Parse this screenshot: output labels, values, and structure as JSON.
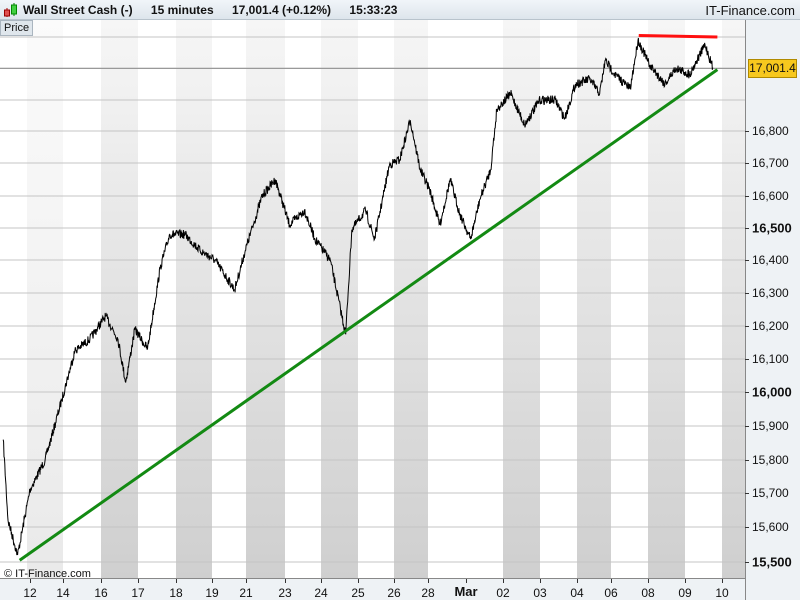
{
  "header": {
    "instrument": "Wall Street Cash (-)",
    "timeframe": "15 minutes",
    "last_change": "17,001.4 (+0.12%)",
    "time": "15:33:23",
    "brand": "IT-Finance.com"
  },
  "panel_tab": "Price",
  "copyright": "© IT-Finance.com",
  "colors": {
    "price_line": "#000000",
    "trend_support": "#138a13",
    "trend_resistance": "#ff1010",
    "last_price_bg": "#f7c81e"
  },
  "chart_data": {
    "type": "line",
    "y_axis": {
      "ticks": [
        {
          "value": 16800,
          "label": "16,800",
          "bold": false
        },
        {
          "value": 16700,
          "label": "16,700",
          "bold": false
        },
        {
          "value": 16600,
          "label": "16,600",
          "bold": false
        },
        {
          "value": 16500,
          "label": "16,500",
          "bold": true
        },
        {
          "value": 16400,
          "label": "16,400",
          "bold": false
        },
        {
          "value": 16300,
          "label": "16,300",
          "bold": false
        },
        {
          "value": 16200,
          "label": "16,200",
          "bold": false
        },
        {
          "value": 16100,
          "label": "16,100",
          "bold": false
        },
        {
          "value": 16000,
          "label": "16,000",
          "bold": true
        },
        {
          "value": 15900,
          "label": "15,900",
          "bold": false
        },
        {
          "value": 15800,
          "label": "15,800",
          "bold": false
        },
        {
          "value": 15700,
          "label": "15,700",
          "bold": false
        },
        {
          "value": 15600,
          "label": "15,600",
          "bold": false
        },
        {
          "value": 15500,
          "label": "15,500",
          "bold": true
        }
      ],
      "gridlines": [
        17100,
        17000,
        16900,
        16800,
        16700,
        16600,
        16500,
        16400,
        16300,
        16200,
        16100,
        16000,
        15900,
        15800,
        15700,
        15600,
        15500
      ],
      "range": [
        15450,
        17150
      ]
    },
    "x_axis": {
      "ticks": [
        {
          "date": "02-12",
          "label": "12"
        },
        {
          "date": "02-14",
          "label": "14"
        },
        {
          "date": "02-16",
          "label": "16"
        },
        {
          "date": "02-17",
          "label": "17"
        },
        {
          "date": "02-18",
          "label": "18"
        },
        {
          "date": "02-19",
          "label": "19"
        },
        {
          "date": "02-21",
          "label": "21"
        },
        {
          "date": "02-23",
          "label": "23"
        },
        {
          "date": "02-24",
          "label": "24"
        },
        {
          "date": "02-25",
          "label": "25"
        },
        {
          "date": "02-26",
          "label": "26"
        },
        {
          "date": "02-28",
          "label": "28"
        },
        {
          "date": "03-01",
          "label": "Mar",
          "bold": true
        },
        {
          "date": "03-02",
          "label": "02"
        },
        {
          "date": "03-03",
          "label": "03"
        },
        {
          "date": "03-04",
          "label": "04"
        },
        {
          "date": "03-06",
          "label": "06"
        },
        {
          "date": "03-08",
          "label": "08"
        },
        {
          "date": "03-09",
          "label": "09"
        },
        {
          "date": "03-10",
          "label": "10"
        }
      ],
      "shaded_periods": [
        [
          "02-16",
          "02-17"
        ],
        [
          "02-18",
          "02-19"
        ],
        [
          "02-21",
          "02-23"
        ],
        [
          "02-24",
          "02-25"
        ],
        [
          "02-26",
          "02-28"
        ],
        [
          "03-02",
          "03-03"
        ],
        [
          "03-04",
          "03-06"
        ],
        [
          "03-08",
          "03-09"
        ],
        [
          "03-10",
          "03-11"
        ]
      ]
    },
    "last_price": {
      "value": 17001.4,
      "label": "17,001.4"
    },
    "series": [
      {
        "points": [
          [
            "02-10 09:00",
            15860
          ],
          [
            "02-10 16:00",
            15620
          ],
          [
            "02-11 06:00",
            15520
          ],
          [
            "02-12 00:00",
            15710
          ],
          [
            "02-12 22:00",
            15800
          ],
          [
            "02-13 22:00",
            15975
          ],
          [
            "02-14 15:00",
            16125
          ],
          [
            "02-15 10:00",
            16160
          ],
          [
            "02-16 03:00",
            16230
          ],
          [
            "02-16 11:00",
            16160
          ],
          [
            "02-16 16:00",
            16030
          ],
          [
            "02-16 22:00",
            16190
          ],
          [
            "02-17 06:00",
            16130
          ],
          [
            "02-17 14:00",
            16375
          ],
          [
            "02-17 20:00",
            16480
          ],
          [
            "02-18 06:00",
            16480
          ],
          [
            "02-18 16:00",
            16430
          ],
          [
            "02-19 04:00",
            16400
          ],
          [
            "02-20 08:00",
            16310
          ],
          [
            "02-20 23:00",
            16430
          ],
          [
            "02-21 20:00",
            16600
          ],
          [
            "02-22 12:00",
            16650
          ],
          [
            "02-23 03:00",
            16510
          ],
          [
            "02-23 13:00",
            16555
          ],
          [
            "02-23 20:00",
            16465
          ],
          [
            "02-24 06:00",
            16400
          ],
          [
            "02-24 16:00",
            16175
          ],
          [
            "02-24 20:00",
            16495
          ],
          [
            "02-25 05:00",
            16555
          ],
          [
            "02-25 11:00",
            16465
          ],
          [
            "02-25 21:00",
            16695
          ],
          [
            "02-26 08:00",
            16710
          ],
          [
            "02-26 23:00",
            16835
          ],
          [
            "02-27 13:00",
            16680
          ],
          [
            "02-28 02:00",
            16620
          ],
          [
            "02-28 15:00",
            16510
          ],
          [
            "02-29 04:00",
            16650
          ],
          [
            "02-29 16:00",
            16545
          ],
          [
            "03-01 03:00",
            16465
          ],
          [
            "03-01 09:00",
            16590
          ],
          [
            "03-01 16:00",
            16680
          ],
          [
            "03-01 20:00",
            16870
          ],
          [
            "03-02 05:00",
            16920
          ],
          [
            "03-02 14:00",
            16820
          ],
          [
            "03-03 00:00",
            16900
          ],
          [
            "03-03 10:00",
            16900
          ],
          [
            "03-03 16:00",
            16840
          ],
          [
            "03-03 23:00",
            16950
          ],
          [
            "03-04 18:00",
            16965
          ],
          [
            "03-05 08:00",
            16920
          ],
          [
            "03-05 16:00",
            17025
          ],
          [
            "03-06 05:00",
            16980
          ],
          [
            "03-07 01:00",
            16935
          ],
          [
            "03-07 11:00",
            17090
          ],
          [
            "03-08 01:00",
            17010
          ],
          [
            "03-08 11:00",
            16950
          ],
          [
            "03-08 18:00",
            17000
          ],
          [
            "03-09 03:00",
            16980
          ],
          [
            "03-09 13:00",
            17075
          ],
          [
            "03-09 18:00",
            17001.4
          ]
        ]
      }
    ],
    "trendlines": [
      {
        "kind": "support",
        "color": "#138a13",
        "from": [
          "02-11 09:00",
          15505
        ],
        "to": [
          "03-09 21:00",
          16995
        ]
      },
      {
        "kind": "resistance",
        "color": "#ff1010",
        "from": [
          "03-07 12:00",
          17105
        ],
        "to": [
          "03-09 21:00",
          17100
        ]
      }
    ]
  }
}
